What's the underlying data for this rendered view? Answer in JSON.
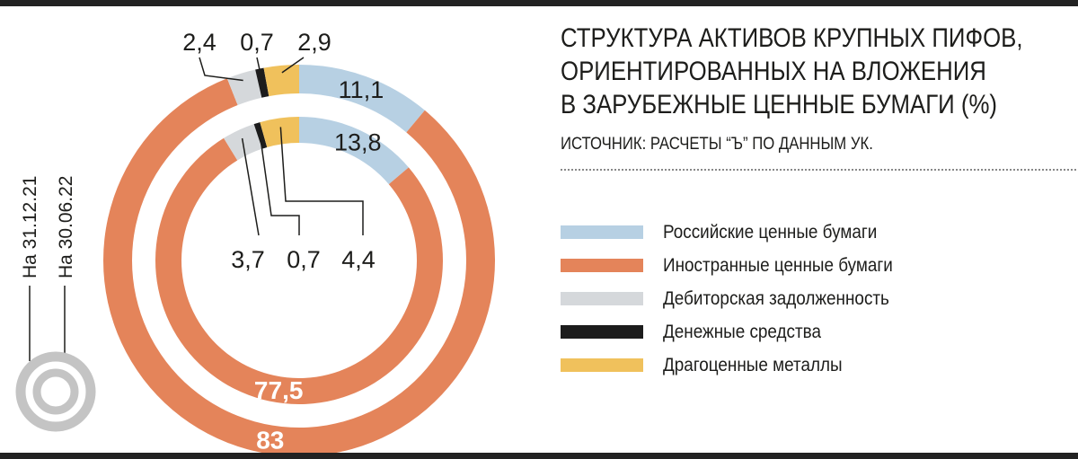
{
  "chart_data": {
    "type": "donut",
    "title_lines": [
      "СТРУКТУРА АКТИВОВ КРУПНЫХ ПИФОВ,",
      "ОРИЕНТИРОВАННЫХ НА ВЛОЖЕНИЯ",
      "В ЗАРУБЕЖНЫЕ ЦЕННЫЕ БУМАГИ (%)"
    ],
    "source": "ИСТОЧНИК: РАСЧЕТЫ “Ъ” ПО ДАННЫМ УК.",
    "categories": [
      "Российские ценные бумаги",
      "Иностранные ценные бумаги",
      "Дебиторская задолженность",
      "Денежные средства",
      "Драгоценные металлы"
    ],
    "colors": [
      "#b7d0e3",
      "#e4845a",
      "#d5d8db",
      "#1c1c1c",
      "#f0c15c"
    ],
    "series": [
      {
        "name": "На 31.12.21",
        "ring": "outer",
        "values": [
          11.1,
          83,
          2.4,
          0.7,
          2.9
        ],
        "labels": [
          "11,1",
          "83",
          "2,4",
          "0,7",
          "2,9"
        ]
      },
      {
        "name": "На 30.06.22",
        "ring": "inner",
        "values": [
          13.8,
          77.5,
          3.7,
          0.7,
          4.4
        ],
        "labels": [
          "13,8",
          "77,5",
          "3,7",
          "0,7",
          "4,4"
        ]
      }
    ],
    "legend_position": "right"
  }
}
